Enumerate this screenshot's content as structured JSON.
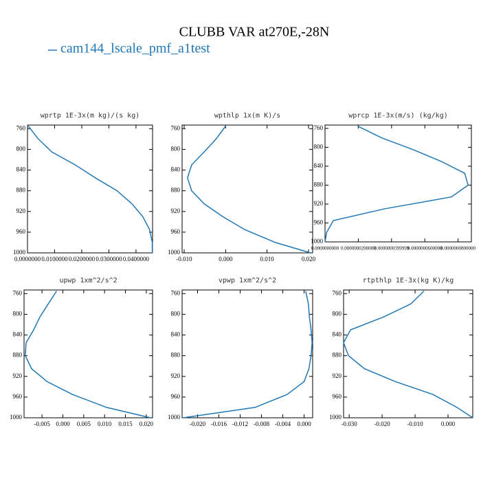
{
  "title": "CLUBB VAR at270E,-28N",
  "legend": {
    "label": "cam144_lscale_pmf_a1test",
    "color": "#1f77b4"
  },
  "chart_data": [
    {
      "type": "line",
      "title": "wprtp  1E-3x(m kg)/(s kg)",
      "y": [
        755,
        780,
        805,
        830,
        855,
        880,
        905,
        930,
        955,
        980,
        1000
      ],
      "series": [
        {
          "values": [
            0.0003,
            0.004,
            0.009,
            0.0176,
            0.025,
            0.033,
            0.0385,
            0.0425,
            0.045,
            0.046,
            0.046
          ]
        }
      ],
      "xlim": [
        0,
        0.0461
      ],
      "xticks": [
        {
          "value": 0,
          "label": "0.0000000"
        },
        {
          "value": 0.01,
          "label": "0.0100000"
        },
        {
          "value": 0.02,
          "label": "0.0200000"
        },
        {
          "value": 0.03,
          "label": "0.0300000"
        },
        {
          "value": 0.04,
          "label": "0.0400000"
        }
      ],
      "ylim": [
        1000,
        753
      ],
      "yticks": [
        760,
        800,
        840,
        880,
        920,
        960,
        1000
      ]
    },
    {
      "type": "line",
      "title": "wpthlp  1x(m K)/s",
      "y": [
        755,
        780,
        805,
        830,
        855,
        880,
        905,
        930,
        955,
        980,
        1000
      ],
      "series": [
        {
          "values": [
            0.0,
            -0.0023,
            -0.0052,
            -0.0082,
            -0.0092,
            -0.0082,
            -0.0052,
            -0.0007,
            0.0046,
            0.012,
            0.0205
          ]
        }
      ],
      "xlim": [
        -0.0105,
        0.021
      ],
      "xticks": [
        {
          "value": -0.01,
          "label": "-0.010"
        },
        {
          "value": 0,
          "label": "0.000"
        },
        {
          "value": 0.01,
          "label": "0.010"
        },
        {
          "value": 0.02,
          "label": "0.020"
        }
      ],
      "ylim": [
        1000,
        753
      ],
      "yticks": [
        760,
        800,
        840,
        880,
        920,
        960,
        1000
      ]
    },
    {
      "type": "line",
      "title": "wprcp  1E-3x(m/s) (kg/kg)",
      "y": [
        755,
        780,
        805,
        830,
        855,
        880,
        905,
        930,
        955,
        980,
        1000
      ],
      "series": [
        {
          "values": [
            1.96e-08,
            3.4e-08,
            5.3e-08,
            7e-08,
            8.4e-08,
            8.6e-08,
            7.6e-08,
            3.6e-08,
            5e-09,
            1e-09,
            0
          ]
        }
      ],
      "xlim": [
        0,
        8.8e-08
      ],
      "xticks": [
        {
          "value": 0,
          "label": "0.0000000000"
        },
        {
          "value": 2e-08,
          "label": "0.0000000200000"
        },
        {
          "value": 4e-08,
          "label": "0.0000000399999"
        },
        {
          "value": 6e-08,
          "label": "0.0000000600000"
        },
        {
          "value": 8e-08,
          "label": "0.0000000800000"
        }
      ],
      "ylim": [
        1000,
        753
      ],
      "yticks": [
        760,
        800,
        840,
        880,
        920,
        960,
        1000
      ]
    },
    {
      "type": "line",
      "title": "upwp  1xm^2/s^2",
      "y": [
        755,
        780,
        805,
        830,
        855,
        880,
        905,
        930,
        955,
        980,
        1000
      ],
      "series": [
        {
          "values": [
            -0.0015,
            -0.0035,
            -0.0055,
            -0.007,
            -0.0088,
            -0.009,
            -0.0075,
            -0.0038,
            0.0023,
            0.0105,
            0.021
          ]
        }
      ],
      "xlim": [
        -0.0093,
        0.0215
      ],
      "xticks": [
        {
          "value": -0.005,
          "label": "-0.005"
        },
        {
          "value": 0,
          "label": "0.000"
        },
        {
          "value": 0.005,
          "label": "0.005"
        },
        {
          "value": 0.01,
          "label": "0.010"
        },
        {
          "value": 0.015,
          "label": "0.015"
        },
        {
          "value": 0.02,
          "label": "0.020"
        }
      ],
      "ylim": [
        1000,
        753
      ],
      "yticks": [
        760,
        800,
        840,
        880,
        920,
        960,
        1000
      ]
    },
    {
      "type": "line",
      "title": "vpwp  1xm^2/s^2",
      "y": [
        755,
        780,
        805,
        830,
        855,
        880,
        905,
        930,
        955,
        980,
        1000
      ],
      "series": [
        {
          "values": [
            0.0003,
            0.0008,
            0.001,
            0.0013,
            0.0015,
            0.0013,
            0.0009,
            0.0,
            -0.0032,
            -0.0092,
            -0.0227
          ]
        }
      ],
      "xlim": [
        -0.0229,
        0.0016
      ],
      "xticks": [
        {
          "value": -0.02,
          "label": "-0.020"
        },
        {
          "value": -0.016,
          "label": "-0.016"
        },
        {
          "value": -0.012,
          "label": "-0.012"
        },
        {
          "value": -0.008,
          "label": "-0.008"
        },
        {
          "value": -0.004,
          "label": "-0.004"
        },
        {
          "value": 0,
          "label": "0.000"
        }
      ],
      "ylim": [
        1000,
        753
      ],
      "yticks": [
        760,
        800,
        840,
        880,
        920,
        960,
        1000
      ]
    },
    {
      "type": "line",
      "title": "rtpthlp  1E-3x(kg K)/kg",
      "y": [
        755,
        780,
        805,
        830,
        855,
        880,
        905,
        930,
        955,
        980,
        1000
      ],
      "series": [
        {
          "values": [
            -0.0073,
            -0.0113,
            -0.0195,
            -0.0296,
            -0.0317,
            -0.0302,
            -0.0254,
            -0.016,
            -0.0046,
            0.0027,
            0.0075
          ]
        }
      ],
      "xlim": [
        -0.0317,
        0.0075
      ],
      "xticks": [
        {
          "value": -0.03,
          "label": "-0.030"
        },
        {
          "value": -0.02,
          "label": "-0.020"
        },
        {
          "value": -0.01,
          "label": "-0.010"
        },
        {
          "value": 0,
          "label": "0.000"
        }
      ],
      "ylim": [
        1000,
        753
      ],
      "yticks": [
        760,
        800,
        840,
        880,
        920,
        960,
        1000
      ]
    }
  ]
}
